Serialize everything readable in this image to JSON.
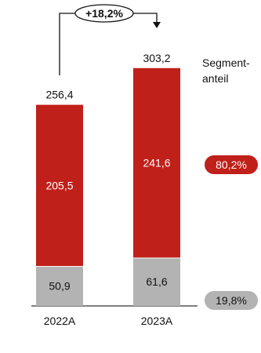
{
  "chart_data": {
    "type": "bar",
    "stacked": true,
    "categories": [
      "2022A",
      "2023A"
    ],
    "totals": [
      "256,4",
      "303,2"
    ],
    "series": [
      {
        "values": [
          50.9,
          61.6
        ],
        "labels": [
          "50,9",
          "61,6"
        ],
        "color": "#b3b3b3"
      },
      {
        "values": [
          205.5,
          241.6
        ],
        "labels": [
          "205,5",
          "241,6"
        ],
        "color": "#c0201a"
      }
    ],
    "growth_label": "+18,2%",
    "segment_share": {
      "title_line1": "Segment-",
      "title_line2": "anteil",
      "badges": [
        {
          "text": "80,2%",
          "color": "#c0201a",
          "text_color": "#ffffff"
        },
        {
          "text": "19,8%",
          "color": "#b3b3b3",
          "text_color": "#111111"
        }
      ]
    }
  }
}
